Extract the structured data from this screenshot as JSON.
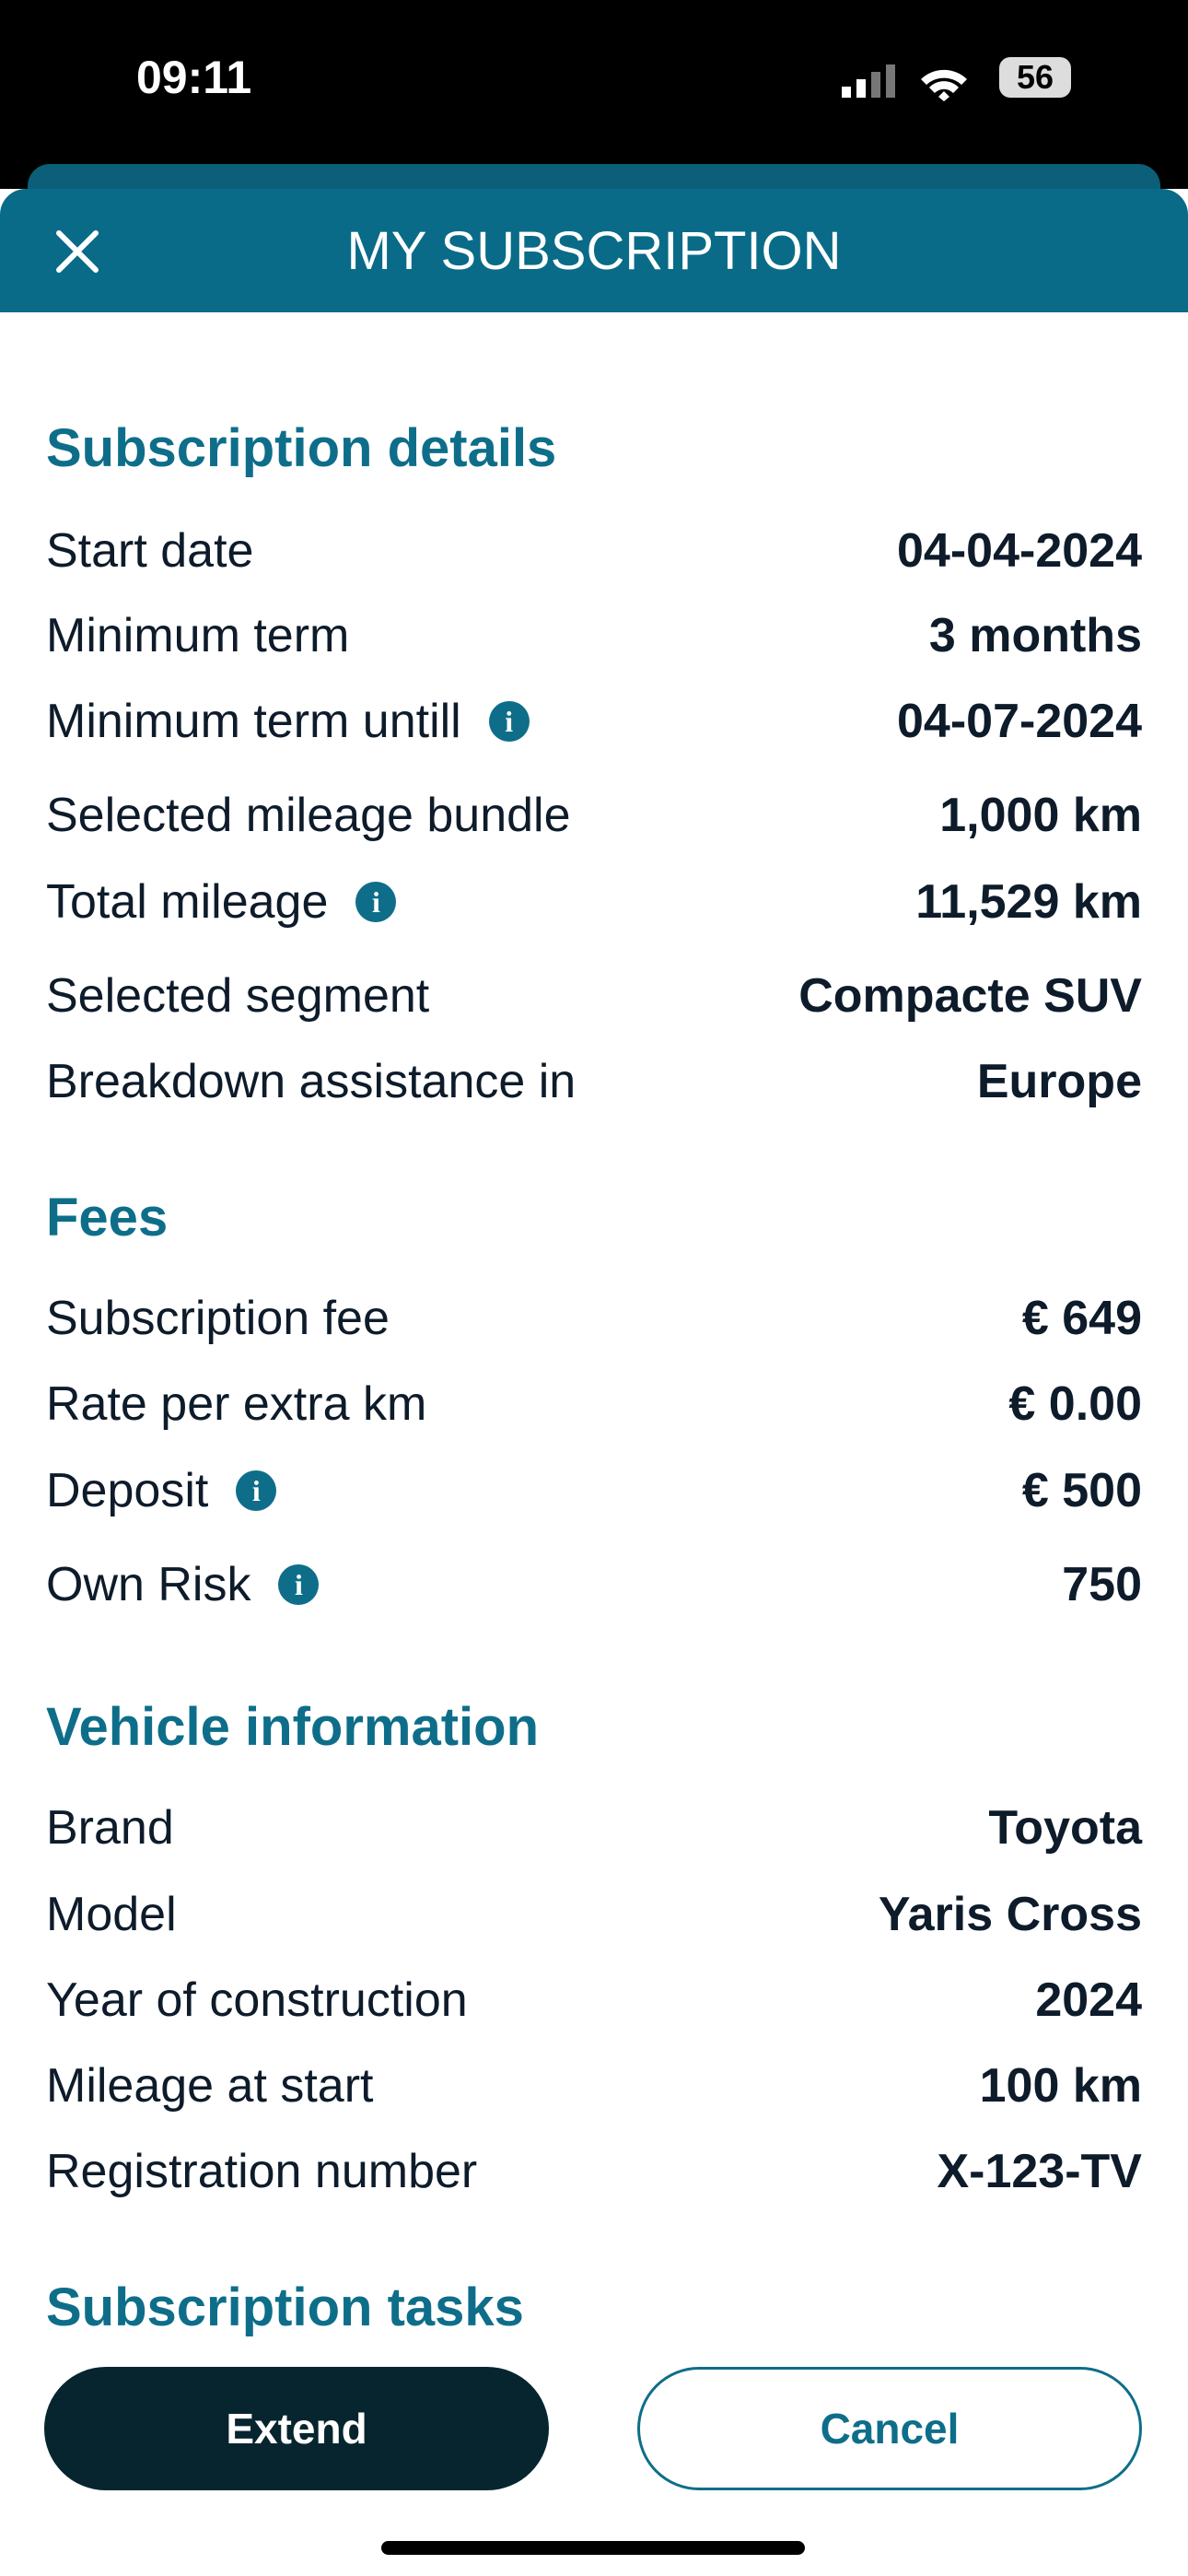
{
  "status_bar": {
    "time": "09:11",
    "battery": "56"
  },
  "header": {
    "title": "MY SUBSCRIPTION"
  },
  "sections": [
    {
      "title": "Subscription details",
      "rows": [
        {
          "label": "Start date",
          "value": "04-04-2024"
        },
        {
          "label": "Minimum term",
          "value": "3 months"
        },
        {
          "label": "Minimum term untill",
          "value": "04-07-2024",
          "info": true
        },
        {
          "label": "Selected mileage bundle",
          "value": "1,000 km"
        },
        {
          "label": "Total mileage",
          "value": "11,529 km",
          "info": true
        },
        {
          "label": "Selected segment",
          "value": "Compacte SUV"
        },
        {
          "label": "Breakdown assistance in",
          "value": "Europe"
        }
      ]
    },
    {
      "title": "Fees",
      "rows": [
        {
          "label": "Subscription fee",
          "value": "€ 649"
        },
        {
          "label": "Rate per extra km",
          "value": "€ 0.00"
        },
        {
          "label": "Deposit",
          "value": "€ 500",
          "info": true
        },
        {
          "label": "Own Risk",
          "value": "750",
          "info": true
        }
      ]
    },
    {
      "title": "Vehicle information",
      "rows": [
        {
          "label": "Brand",
          "value": "Toyota"
        },
        {
          "label": "Model",
          "value": "Yaris Cross"
        },
        {
          "label": "Year of construction",
          "value": "2024"
        },
        {
          "label": "Mileage at start",
          "value": "100 km"
        },
        {
          "label": "Registration number",
          "value": "X-123-TV"
        }
      ]
    },
    {
      "title": "Subscription tasks",
      "rows": []
    }
  ],
  "buttons": {
    "primary": "Extend",
    "secondary": "Cancel"
  }
}
